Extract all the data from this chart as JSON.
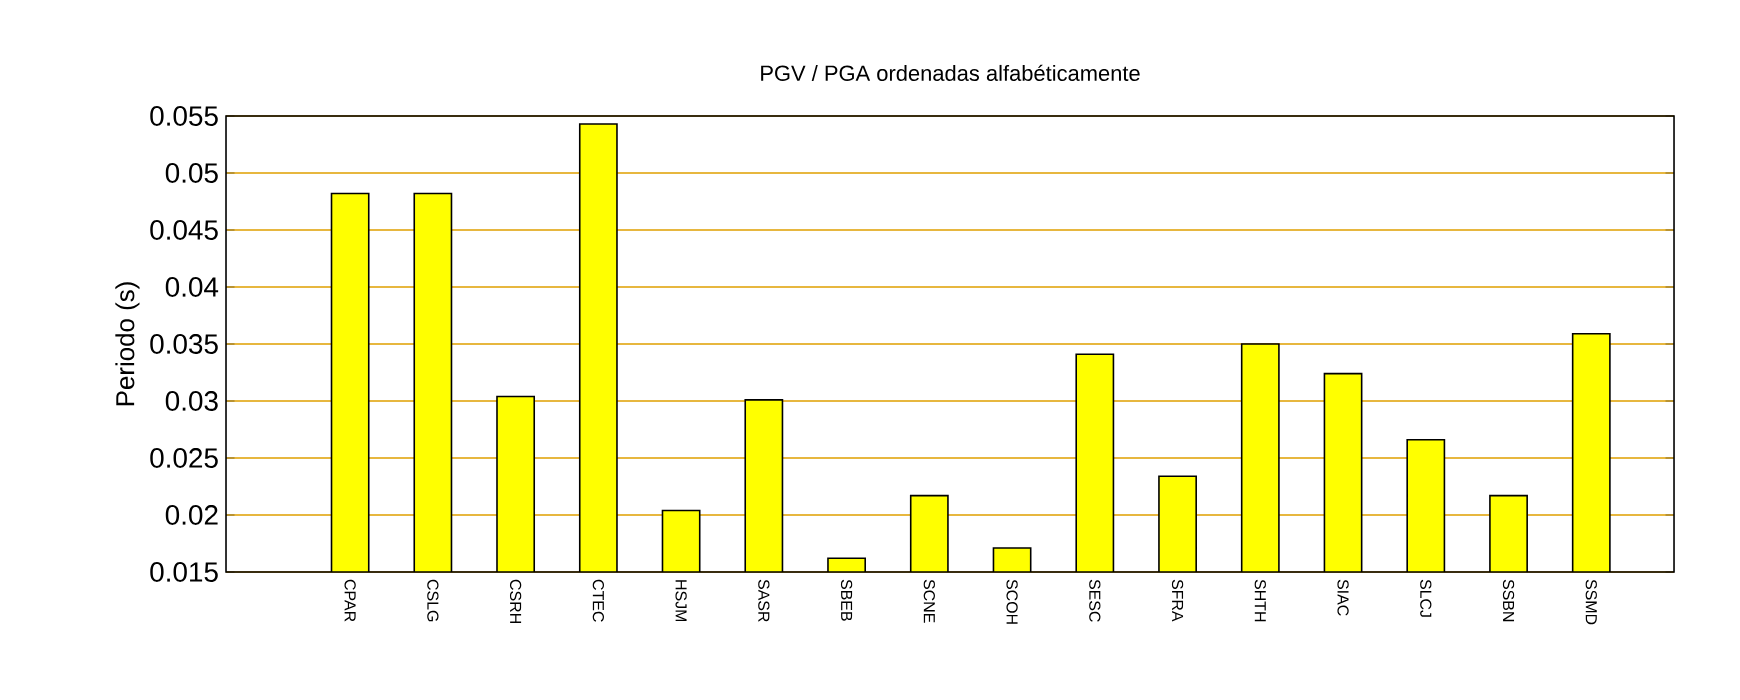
{
  "chart_data": {
    "type": "bar",
    "title": "PGV / PGA ordenadas alfabéticamente",
    "ylabel": "Periodo (s)",
    "categories": [
      "CPAR",
      "CSLG",
      "CSRH",
      "CTEC",
      "HSJM",
      "SASR",
      "SBEB",
      "SCNE",
      "SCOH",
      "SESC",
      "SFRA",
      "SHTH",
      "SIAC",
      "SLCJ",
      "SSBN",
      "SSMD"
    ],
    "values": [
      0.0482,
      0.0482,
      0.0304,
      0.0543,
      0.0204,
      0.0301,
      0.0162,
      0.0217,
      0.0171,
      0.0341,
      0.0234,
      0.035,
      0.0324,
      0.0266,
      0.0217,
      0.0359
    ],
    "color": "#ffff00",
    "ylim": [
      0.015,
      0.055
    ],
    "yticks": [
      0.015,
      0.02,
      0.025,
      0.03,
      0.035,
      0.04,
      0.045,
      0.05,
      0.055
    ],
    "grid": "y"
  }
}
